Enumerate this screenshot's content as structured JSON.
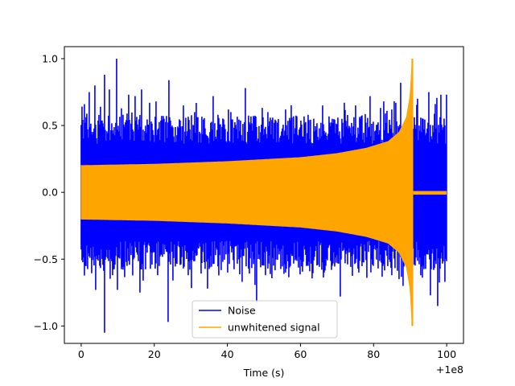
{
  "chart_data": {
    "type": "line",
    "title": "",
    "xlabel": "Time (s)",
    "ylabel": "",
    "x_offset_label": "+1e8",
    "xlim": [
      -4.6,
      104.6
    ],
    "ylim": [
      -1.13,
      1.09
    ],
    "x_ticks": [
      {
        "value": 0,
        "label": "0"
      },
      {
        "value": 20,
        "label": "20"
      },
      {
        "value": 40,
        "label": "40"
      },
      {
        "value": 60,
        "label": "60"
      },
      {
        "value": 80,
        "label": "80"
      },
      {
        "value": 100,
        "label": "100"
      }
    ],
    "y_ticks": [
      {
        "value": 1.0,
        "label": "1.0"
      },
      {
        "value": 0.5,
        "label": "0.5"
      },
      {
        "value": 0.0,
        "label": "0.0"
      },
      {
        "value": -0.5,
        "label": "−0.5"
      },
      {
        "value": -1.0,
        "label": "−1.0"
      }
    ],
    "grid": false,
    "legend_position": "lower-center",
    "series": [
      {
        "name": "Noise",
        "color": "#0000ff",
        "x_range": [
          0,
          100
        ],
        "typical_envelope": 0.3,
        "peaks": [
          {
            "x": 0.8,
            "y": 0.66
          },
          {
            "x": 2.2,
            "y": 0.75
          },
          {
            "x": 3.8,
            "y": 0.8
          },
          {
            "x": 5.2,
            "y": 0.64
          },
          {
            "x": 6.3,
            "y": 0.88
          },
          {
            "x": 7.8,
            "y": 0.77
          },
          {
            "x": 9.7,
            "y": 1.0
          },
          {
            "x": 11.5,
            "y": 0.58
          },
          {
            "x": 13.0,
            "y": 0.73
          },
          {
            "x": 14.7,
            "y": 0.72
          },
          {
            "x": 16.5,
            "y": 0.77
          },
          {
            "x": 18.8,
            "y": 0.67
          },
          {
            "x": 20.5,
            "y": 0.68
          },
          {
            "x": 24.0,
            "y": 0.84
          },
          {
            "x": 28.0,
            "y": 0.65
          },
          {
            "x": 31.0,
            "y": 0.6
          },
          {
            "x": 36.0,
            "y": 0.72
          },
          {
            "x": 41.0,
            "y": 0.6
          },
          {
            "x": 45.0,
            "y": 0.78
          },
          {
            "x": 51.0,
            "y": 0.6
          },
          {
            "x": 56.0,
            "y": 0.62
          },
          {
            "x": 62.0,
            "y": 0.58
          },
          {
            "x": 66.0,
            "y": 0.65
          },
          {
            "x": 72.0,
            "y": 0.67
          },
          {
            "x": 75.0,
            "y": 0.65
          },
          {
            "x": 79.0,
            "y": 0.72
          },
          {
            "x": 85.0,
            "y": 0.62
          },
          {
            "x": 87.5,
            "y": 0.82
          },
          {
            "x": 92.0,
            "y": 0.7
          },
          {
            "x": 95.0,
            "y": 0.75
          },
          {
            "x": 98.5,
            "y": 0.73
          },
          {
            "x": 100.0,
            "y": 0.73
          }
        ],
        "troughs": [
          {
            "x": 1.0,
            "y": -0.55
          },
          {
            "x": 4.0,
            "y": -0.73
          },
          {
            "x": 6.3,
            "y": -1.05
          },
          {
            "x": 8.5,
            "y": -0.62
          },
          {
            "x": 10.0,
            "y": -0.73
          },
          {
            "x": 12.5,
            "y": -0.55
          },
          {
            "x": 16.0,
            "y": -0.75
          },
          {
            "x": 21.0,
            "y": -0.62
          },
          {
            "x": 23.8,
            "y": -0.97
          },
          {
            "x": 28.0,
            "y": -0.57
          },
          {
            "x": 34.5,
            "y": -0.72
          },
          {
            "x": 40.0,
            "y": -0.6
          },
          {
            "x": 44.0,
            "y": -0.67
          },
          {
            "x": 48.0,
            "y": -0.82
          },
          {
            "x": 51.0,
            "y": -0.57
          },
          {
            "x": 56.0,
            "y": -0.6
          },
          {
            "x": 62.0,
            "y": -0.55
          },
          {
            "x": 66.5,
            "y": -0.6
          },
          {
            "x": 71.0,
            "y": -0.78
          },
          {
            "x": 76.0,
            "y": -0.6
          },
          {
            "x": 80.0,
            "y": -0.55
          },
          {
            "x": 85.0,
            "y": -0.62
          },
          {
            "x": 88.0,
            "y": -0.7
          },
          {
            "x": 93.0,
            "y": -0.62
          },
          {
            "x": 95.5,
            "y": -0.77
          },
          {
            "x": 97.5,
            "y": -0.85
          },
          {
            "x": 99.5,
            "y": -0.67
          }
        ]
      },
      {
        "name": "unwhitened signal",
        "color": "#ffa500",
        "x_range": [
          0,
          100
        ],
        "envelope_points": [
          {
            "x": 0,
            "y": 0.2
          },
          {
            "x": 20,
            "y": 0.21
          },
          {
            "x": 40,
            "y": 0.23
          },
          {
            "x": 60,
            "y": 0.26
          },
          {
            "x": 70,
            "y": 0.29
          },
          {
            "x": 78,
            "y": 0.33
          },
          {
            "x": 84,
            "y": 0.38
          },
          {
            "x": 87,
            "y": 0.45
          },
          {
            "x": 89,
            "y": 0.56
          },
          {
            "x": 90,
            "y": 0.72
          },
          {
            "x": 90.6,
            "y": 1.0
          }
        ],
        "merger_x": 90.6,
        "ringdown_amplitude": 0.01
      }
    ]
  }
}
